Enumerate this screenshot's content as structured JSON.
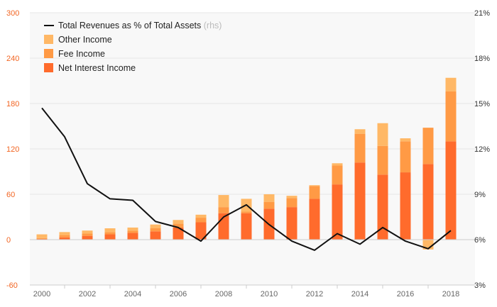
{
  "chart_data": {
    "type": "bar",
    "stacked": true,
    "x": [
      "2000",
      "2001",
      "2002",
      "2003",
      "2004",
      "2005",
      "2006",
      "2007",
      "2008",
      "2009",
      "2010",
      "2011",
      "2012",
      "2013",
      "2014",
      "2015",
      "2016",
      "2017",
      "2018"
    ],
    "x_tick_labels": [
      "2000",
      "2002",
      "2004",
      "2006",
      "2008",
      "2010",
      "2012",
      "2014",
      "2016",
      "2018"
    ],
    "series": [
      {
        "name": "Net Interest Income",
        "color": "#ff6b2c",
        "values": [
          1,
          3,
          5,
          7,
          9,
          11,
          16,
          23,
          35,
          35,
          41,
          43,
          54,
          73,
          102,
          86,
          89,
          100,
          130
        ]
      },
      {
        "name": "Fee Income",
        "color": "#ff9a45",
        "values": [
          1,
          3,
          3,
          3,
          3,
          4,
          5,
          6,
          8,
          2,
          9,
          12,
          17,
          25,
          38,
          38,
          41,
          48,
          66
        ]
      },
      {
        "name": "Other Income",
        "color": "#ffb866",
        "values": [
          5,
          4,
          4,
          5,
          4,
          5,
          5,
          4,
          16,
          17,
          10,
          3,
          1,
          3,
          6,
          30,
          4,
          -13,
          18
        ]
      }
    ],
    "line": {
      "name": "Total Revenues as % of Total Assets",
      "note": "(rhs)",
      "values": [
        14.7,
        12.8,
        9.7,
        8.7,
        8.6,
        7.2,
        6.8,
        5.9,
        7.5,
        8.3,
        7.0,
        5.9,
        5.3,
        6.4,
        5.7,
        6.8,
        5.9,
        5.4,
        6.6
      ]
    },
    "y_left": {
      "ylim": [
        -60,
        300
      ],
      "ticks": [
        "-60",
        "0",
        "60",
        "120",
        "180",
        "240",
        "300"
      ]
    },
    "y_right": {
      "ylim": [
        3,
        21
      ],
      "ticks": [
        "3%",
        "6%",
        "9%",
        "12%",
        "15%",
        "18%",
        "21%"
      ]
    },
    "legend": {
      "placement": "top-left",
      "items": [
        "Total Revenues as % of Total Assets",
        "Other Income",
        "Fee Income",
        "Net Interest Income"
      ]
    },
    "grid": true
  }
}
